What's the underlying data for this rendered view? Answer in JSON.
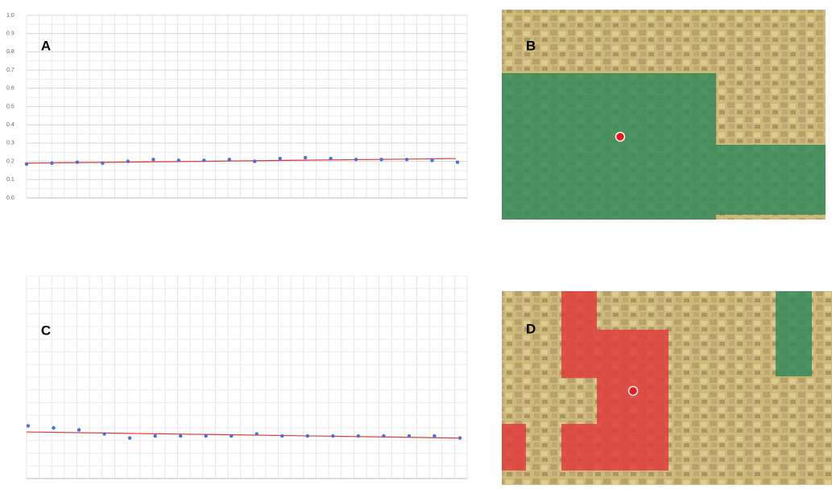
{
  "chart_data": [
    {
      "type": "scatter",
      "label": "A",
      "color": "#4a6fd6",
      "grid": true,
      "categories": [
        null,
        null,
        null,
        null,
        null,
        null,
        null,
        null,
        null,
        null,
        null,
        null,
        null,
        null,
        null,
        null,
        null,
        null
      ],
      "values": [
        0.185,
        0.19,
        0.195,
        0.19,
        0.2,
        0.21,
        0.205,
        0.205,
        0.21,
        0.2,
        0.215,
        0.22,
        0.215,
        0.21,
        0.21,
        0.21,
        0.205,
        0.195
      ],
      "trendline": {
        "color": "#e53935",
        "values": [
          0.19,
          0.215
        ]
      },
      "ylim": [
        0,
        1
      ],
      "yticks": [
        {
          "value": 0,
          "label": "0.0"
        },
        0.1,
        0.2,
        0.3,
        0.4,
        0.5,
        0.6,
        0.7,
        0.8,
        0.9,
        {
          "value": 1,
          "label": "1.0"
        }
      ]
    },
    {
      "type": "scatter",
      "label": "C",
      "color": "#4a6fd6",
      "grid": true,
      "categories": [
        null,
        null,
        null,
        null,
        null,
        null,
        null,
        null,
        null,
        null,
        null,
        null,
        null,
        null,
        null,
        null,
        null,
        null
      ],
      "values": [
        0.26,
        0.25,
        0.24,
        0.22,
        0.2,
        0.21,
        0.21,
        0.21,
        0.21,
        0.22,
        0.21,
        0.21,
        0.21,
        0.21,
        0.21,
        0.21,
        0.21,
        0.2
      ],
      "trendline": {
        "color": "#e53935",
        "values": [
          0.23,
          0.2
        ]
      },
      "ylim": [
        0,
        1
      ]
    }
  ],
  "maps": [
    {
      "label": "B"
    },
    {
      "label": "D"
    }
  ]
}
